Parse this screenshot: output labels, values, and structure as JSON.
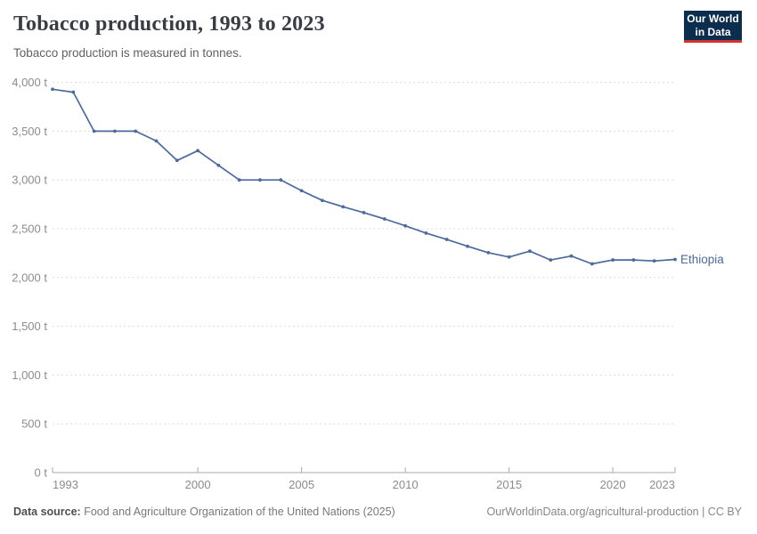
{
  "header": {
    "title": "Tobacco production, 1993 to 2023",
    "subtitle": "Tobacco production is measured in tonnes.",
    "logo": {
      "line1": "Our World",
      "line2": "in Data"
    }
  },
  "footer": {
    "source_label": "Data source:",
    "source_text": " Food and Agriculture Organization of the United Nations (2025)",
    "credit": "OurWorldinData.org/agricultural-production | CC BY"
  },
  "colors": {
    "line": "#4C6A9C",
    "series_label": "#4C6A9C",
    "gridline": "#dcdcdc",
    "axis": "#a9a9a9",
    "tick_label": "#8c8c8c",
    "logo_bg": "#0d2d4e",
    "logo_red": "#d0342c"
  },
  "chart_data": {
    "type": "line",
    "title": "Tobacco production, 1993 to 2023",
    "subtitle": "Tobacco production is measured in tonnes.",
    "xlabel": "",
    "ylabel": "",
    "xlim": [
      1993,
      2023
    ],
    "ylim": [
      0,
      4000
    ],
    "x_ticks": [
      1993,
      2000,
      2005,
      2010,
      2015,
      2020,
      2023
    ],
    "y_ticks": [
      0,
      500,
      1000,
      1500,
      2000,
      2500,
      3000,
      3500,
      4000
    ],
    "y_tick_suffix": " t",
    "grid": "dashed-horizontal",
    "legend_position": "end-of-line-label",
    "series": [
      {
        "name": "Ethiopia",
        "color": "#4C6A9C",
        "x": [
          1993,
          1994,
          1995,
          1996,
          1997,
          1998,
          1999,
          2000,
          2001,
          2002,
          2003,
          2004,
          2005,
          2006,
          2007,
          2008,
          2009,
          2010,
          2011,
          2012,
          2013,
          2014,
          2015,
          2016,
          2017,
          2018,
          2019,
          2020,
          2021,
          2022,
          2023
        ],
        "values": [
          3930,
          3900,
          3500,
          3500,
          3500,
          3400,
          3200,
          3300,
          3150,
          3000,
          3000,
          3000,
          2890,
          2790,
          2725,
          2665,
          2600,
          2530,
          2455,
          2390,
          2320,
          2255,
          2210,
          2270,
          2180,
          2220,
          2140,
          2180,
          2180,
          2170,
          2185
        ]
      }
    ]
  }
}
